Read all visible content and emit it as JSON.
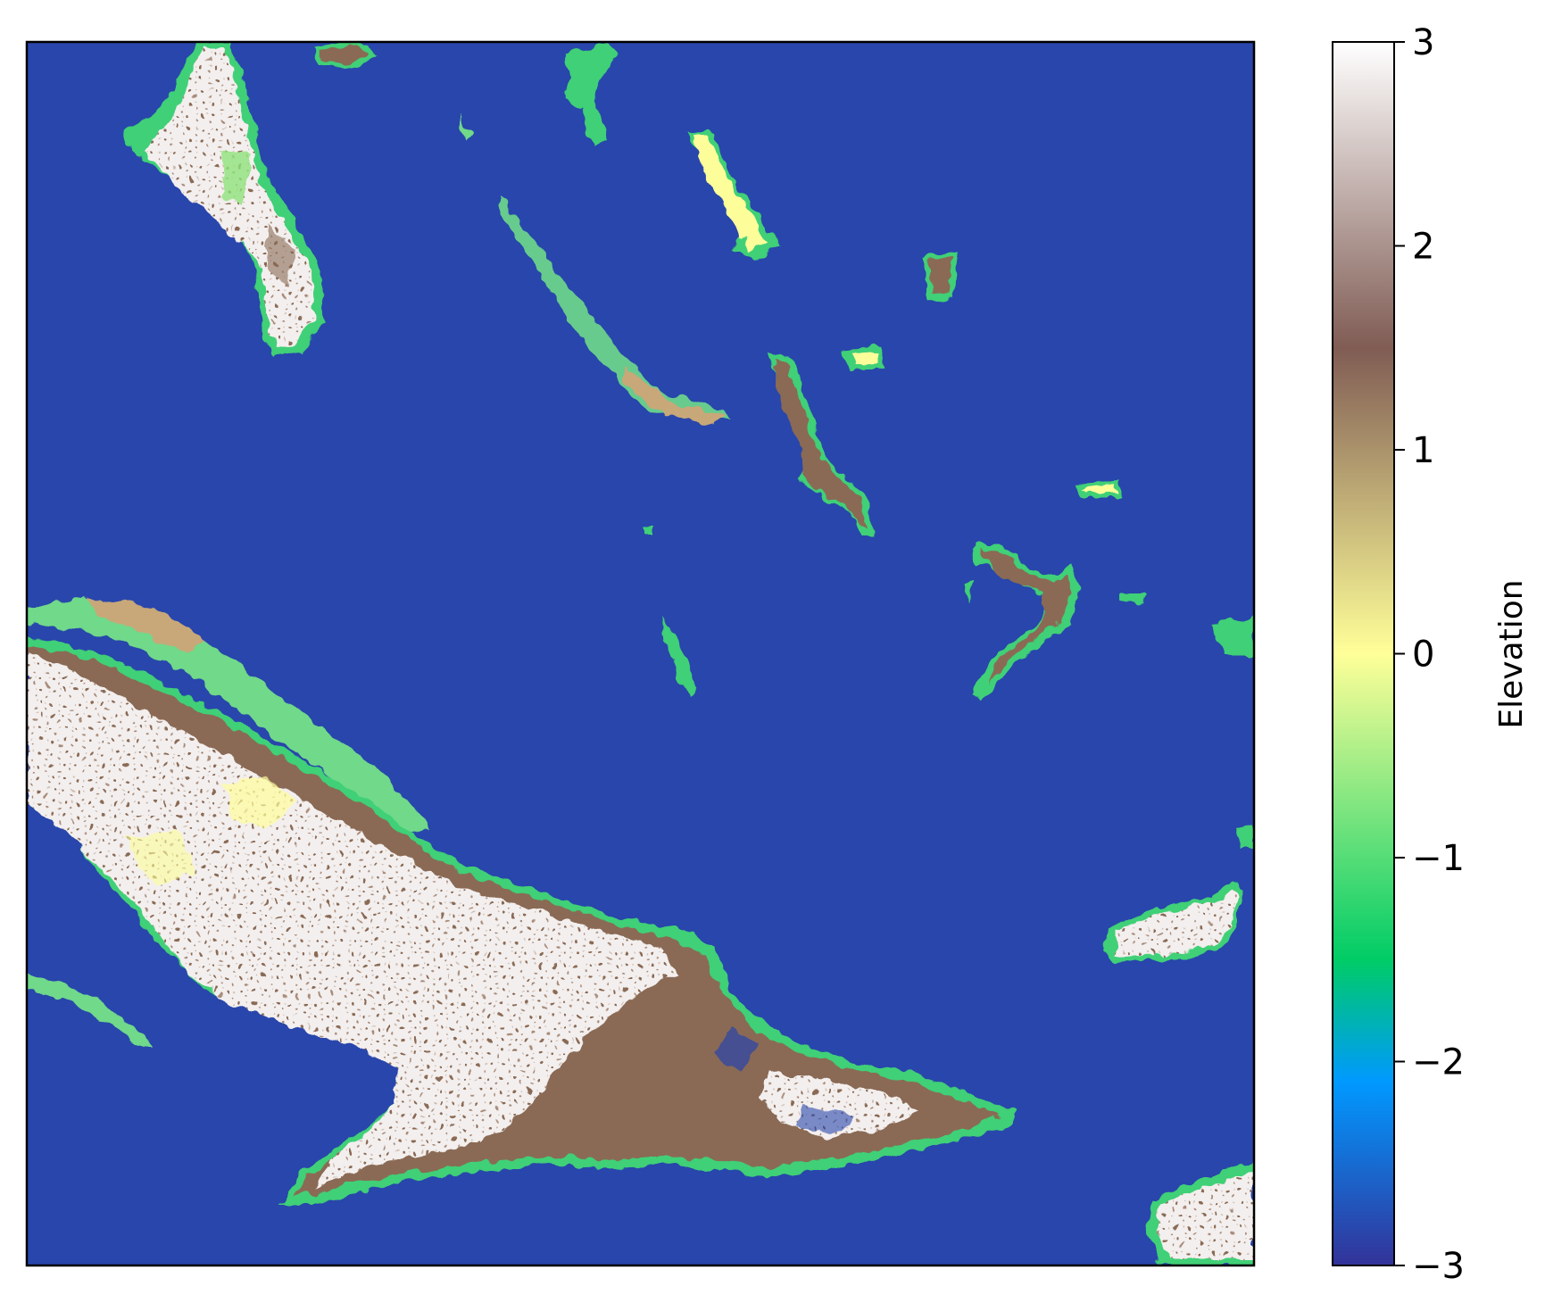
{
  "chart_data": {
    "type": "heatmap",
    "title": "",
    "xlabel": "",
    "ylabel": "",
    "axes_ticks_visible": false,
    "colormap": "terrain",
    "colorbar": {
      "label": "Elevation",
      "range": [
        -3,
        3
      ],
      "ticks": [
        3,
        2,
        1,
        0,
        -1,
        -2,
        -3
      ],
      "tick_labels": [
        "3",
        "2",
        "1",
        "0",
        "−1",
        "−2",
        "−3"
      ],
      "placement": "right"
    },
    "colors": {
      "water": "#2846ab",
      "shallow": "#0a8fe6",
      "shore_green": "#3fd077",
      "lowland": "#fdfd9a",
      "upland": "#8a6a55",
      "peak": "#f5f2f0"
    }
  }
}
